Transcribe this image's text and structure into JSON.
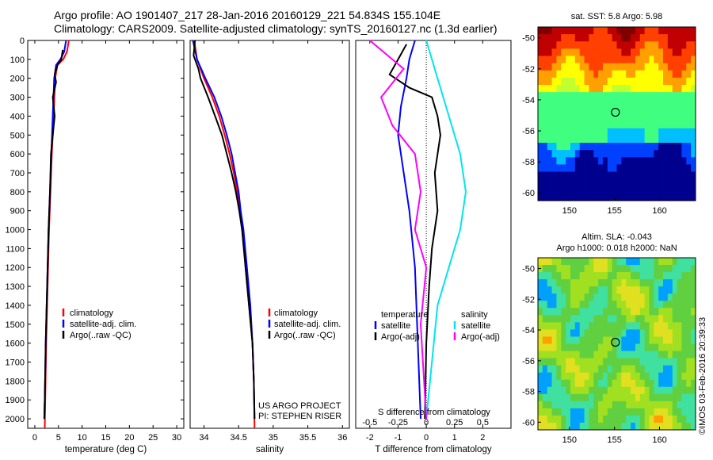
{
  "header": {
    "line1": "Argo profile: AO 1901407_217 28-Jan-2016 20160129_221 54.834S 155.104E",
    "line2": "Climatology: CARS2009. Satellite-adjusted climatology: synTS_20160127.nc (1.3d earlier)"
  },
  "credit": "©IMOS 03-Feb-2016 20:39:33",
  "colors": {
    "climatology": "#ff0000",
    "satellite": "#0000ff",
    "argo": "#000000",
    "sal_satellite": "#00e5ee",
    "sal_argo": "#ff00ff"
  },
  "chart_data": [
    {
      "type": "line",
      "id": "temperature",
      "xlabel": "temperature (deg C)",
      "xlim": [
        -1.5,
        31.5
      ],
      "ylim": [
        2050,
        0
      ],
      "xticks": [
        0,
        5,
        10,
        15,
        20,
        25,
        30
      ],
      "xtick_labels": [
        "0",
        "5",
        "10",
        "15",
        "20",
        "25",
        "30"
      ],
      "yticks": [
        0,
        100,
        200,
        300,
        400,
        500,
        600,
        700,
        800,
        900,
        1000,
        1100,
        1200,
        1300,
        1400,
        1500,
        1600,
        1700,
        1800,
        1900,
        2000
      ],
      "ytick_labels": [
        "0",
        "100",
        "200",
        "300",
        "400",
        "500",
        "600",
        "700",
        "800",
        "900",
        "1000",
        "1100",
        "1200",
        "1300",
        "1400",
        "1500",
        "1600",
        "1700",
        "1800",
        "1900",
        "2000"
      ],
      "legend": [
        "climatology",
        "satellite-adj. clim.",
        "Argo(..raw -QC)"
      ],
      "series": [
        {
          "name": "climatology",
          "color": "#ff0000",
          "points": [
            [
              7.2,
              0
            ],
            [
              6.8,
              60
            ],
            [
              6.0,
              100
            ],
            [
              4.8,
              130
            ],
            [
              4.3,
              200
            ],
            [
              4.0,
              400
            ],
            [
              3.6,
              600
            ],
            [
              3.3,
              800
            ],
            [
              3.0,
              1000
            ],
            [
              2.7,
              1300
            ],
            [
              2.4,
              1600
            ],
            [
              2.2,
              1900
            ],
            [
              2.1,
              2050
            ]
          ]
        },
        {
          "name": "satellite-adj. clim.",
          "color": "#0000ff",
          "points": [
            [
              6.6,
              0
            ],
            [
              6.2,
              60
            ],
            [
              5.4,
              100
            ],
            [
              4.5,
              130
            ],
            [
              4.1,
              200
            ],
            [
              3.8,
              400
            ],
            [
              3.5,
              600
            ],
            [
              3.2,
              800
            ],
            [
              2.9,
              1000
            ],
            [
              2.6,
              1300
            ],
            [
              2.3,
              1600
            ],
            [
              2.1,
              1900
            ],
            [
              2.0,
              2000
            ]
          ]
        },
        {
          "name": "Argo(..raw -QC)",
          "color": "#000000",
          "points": [
            [
              5.9,
              50
            ],
            [
              5.6,
              100
            ],
            [
              4.8,
              130
            ],
            [
              4.2,
              180
            ],
            [
              4.5,
              220
            ],
            [
              3.8,
              300
            ],
            [
              4.2,
              400
            ],
            [
              3.4,
              600
            ],
            [
              3.2,
              800
            ],
            [
              2.9,
              1000
            ],
            [
              2.6,
              1300
            ],
            [
              2.3,
              1600
            ],
            [
              2.1,
              1900
            ],
            [
              2.0,
              2000
            ]
          ]
        }
      ]
    },
    {
      "type": "line",
      "id": "salinity",
      "xlabel": "salinity",
      "xlim": [
        33.8,
        36.1
      ],
      "ylim": [
        2050,
        0
      ],
      "xticks": [
        34,
        34.5,
        35,
        35.5,
        36
      ],
      "xtick_labels": [
        "34",
        "34.5",
        "35",
        "35.5",
        "36"
      ],
      "legend": [
        "climatology",
        "satellite-adj. clim.",
        "Argo(..raw -QC)"
      ],
      "annotations": [
        "US ARGO PROJECT",
        "PI: STEPHEN RISER"
      ],
      "series": [
        {
          "name": "climatology",
          "color": "#ff0000",
          "points": [
            [
              33.86,
              0
            ],
            [
              33.9,
              100
            ],
            [
              34.0,
              200
            ],
            [
              34.12,
              300
            ],
            [
              34.22,
              400
            ],
            [
              34.3,
              500
            ],
            [
              34.37,
              600
            ],
            [
              34.43,
              700
            ],
            [
              34.48,
              800
            ],
            [
              34.52,
              900
            ],
            [
              34.56,
              1000
            ],
            [
              34.6,
              1200
            ],
            [
              34.65,
              1400
            ],
            [
              34.7,
              1600
            ],
            [
              34.72,
              1800
            ],
            [
              34.73,
              2050
            ]
          ]
        },
        {
          "name": "satellite-adj. clim.",
          "color": "#0000ff",
          "points": [
            [
              33.84,
              0
            ],
            [
              33.9,
              100
            ],
            [
              34.02,
              200
            ],
            [
              34.15,
              300
            ],
            [
              34.25,
              400
            ],
            [
              34.33,
              500
            ],
            [
              34.4,
              600
            ],
            [
              34.45,
              700
            ],
            [
              34.5,
              800
            ],
            [
              34.53,
              900
            ],
            [
              34.57,
              1000
            ],
            [
              34.62,
              1200
            ],
            [
              34.67,
              1400
            ],
            [
              34.7,
              1600
            ],
            [
              34.72,
              1800
            ],
            [
              34.73,
              2000
            ]
          ]
        },
        {
          "name": "Argo(..raw -QC)",
          "color": "#000000",
          "points": [
            [
              33.87,
              0
            ],
            [
              33.85,
              80
            ],
            [
              33.92,
              150
            ],
            [
              33.95,
              200
            ],
            [
              34.06,
              300
            ],
            [
              34.16,
              400
            ],
            [
              34.26,
              500
            ],
            [
              34.33,
              600
            ],
            [
              34.4,
              700
            ],
            [
              34.46,
              800
            ],
            [
              34.51,
              900
            ],
            [
              34.55,
              1000
            ],
            [
              34.6,
              1200
            ],
            [
              34.65,
              1400
            ],
            [
              34.7,
              1600
            ],
            [
              34.72,
              1800
            ],
            [
              34.73,
              2000
            ]
          ]
        }
      ]
    },
    {
      "type": "line",
      "id": "differences",
      "xlabel": "T difference from climatology",
      "xlim": [
        -2.5,
        3.0
      ],
      "ylim": [
        2050,
        0
      ],
      "xticks": [
        -2,
        -1,
        0,
        1,
        2
      ],
      "xtick_labels": [
        "-2",
        "-1",
        "0",
        "1",
        "2"
      ],
      "secondary_xlabel": "S difference from climatology",
      "secondary_xticks": [
        -0.5,
        -0.25,
        0,
        0.25,
        0.5
      ],
      "secondary_xtick_labels": [
        "-0.5",
        "-0.25",
        "0",
        "0.25",
        "0.5"
      ],
      "legend_temperature_title": "temperature",
      "legend_temperature": [
        "satellite",
        "Argo(-adj)"
      ],
      "legend_salinity_title": "salinity",
      "legend_salinity": [
        "satellite",
        "Argo(-adj)"
      ],
      "series": [
        {
          "name": "satellite",
          "group": "temperature",
          "color": "#0000ff",
          "points": [
            [
              -0.4,
              0
            ],
            [
              -0.6,
              100
            ],
            [
              -0.7,
              200
            ],
            [
              -0.9,
              350
            ],
            [
              -1.0,
              500
            ],
            [
              -0.8,
              700
            ],
            [
              -0.6,
              900
            ],
            [
              -0.4,
              1200
            ],
            [
              -0.3,
              1600
            ],
            [
              -0.2,
              2000
            ]
          ]
        },
        {
          "name": "Argo(-adj)",
          "group": "temperature",
          "color": "#000000",
          "points": [
            [
              -0.7,
              20
            ],
            [
              -1.0,
              100
            ],
            [
              -1.3,
              180
            ],
            [
              -0.6,
              250
            ],
            [
              0.2,
              300
            ],
            [
              0.4,
              400
            ],
            [
              0.5,
              500
            ],
            [
              0.3,
              700
            ],
            [
              0.4,
              900
            ],
            [
              0.2,
              1100
            ],
            [
              0.1,
              1300
            ],
            [
              0.0,
              1600
            ],
            [
              -0.05,
              2000
            ]
          ]
        },
        {
          "name": "satellite",
          "group": "salinity",
          "color": "#00e5ee",
          "points": [
            [
              0.0,
              0
            ],
            [
              0.1,
              200
            ],
            [
              0.2,
              400
            ],
            [
              0.3,
              600
            ],
            [
              0.35,
              800
            ],
            [
              0.3,
              1000
            ],
            [
              0.2,
              1200
            ],
            [
              0.1,
              1400
            ],
            [
              0.05,
              1700
            ],
            [
              0.0,
              2000
            ]
          ]
        },
        {
          "name": "Argo(-adj)",
          "group": "salinity",
          "color": "#ff00ff",
          "points": [
            [
              -0.5,
              0
            ],
            [
              -0.2,
              150
            ],
            [
              -0.4,
              300
            ],
            [
              -0.3,
              450
            ],
            [
              -0.1,
              600
            ],
            [
              -0.05,
              800
            ],
            [
              -0.1,
              1000
            ],
            [
              0.0,
              1200
            ],
            [
              -0.05,
              1500
            ],
            [
              0.0,
              2000
            ]
          ]
        }
      ]
    },
    {
      "type": "heatmap",
      "id": "sst_map",
      "title": "sat. SST: 5.8 Argo: 5.98",
      "xlim": [
        146.5,
        164
      ],
      "ylim": [
        -60.5,
        -49.3
      ],
      "xticks": [
        150,
        155,
        160
      ],
      "xtick_labels": [
        "150",
        "155",
        "160"
      ],
      "yticks": [
        -50,
        -52,
        -54,
        -56,
        -58,
        -60
      ],
      "ytick_labels": [
        "-50",
        "-52",
        "-54",
        "-56",
        "-58",
        "-60"
      ],
      "marker": [
        155.1,
        -54.8
      ],
      "value_range": [
        2.0,
        12.0
      ],
      "colors": [
        "#00008f",
        "#0040ff",
        "#00bfff",
        "#40ff80",
        "#c0ff30",
        "#ffff00",
        "#ffa000",
        "#ff4000",
        "#c00000",
        "#800000"
      ]
    },
    {
      "type": "heatmap",
      "id": "sla_map",
      "title": "Altim. SLA: -0.043",
      "subtitle": "Argo h1000: 0.018 h2000: NaN",
      "xlim": [
        146.5,
        164
      ],
      "ylim": [
        -60.5,
        -49.3
      ],
      "xticks": [
        150,
        155,
        160
      ],
      "xtick_labels": [
        "150",
        "155",
        "160"
      ],
      "yticks": [
        -50,
        -52,
        -54,
        -56,
        -58,
        -60
      ],
      "ytick_labels": [
        "-50",
        "-52",
        "-54",
        "-56",
        "-58",
        "-60"
      ],
      "marker": [
        155.1,
        -54.8
      ],
      "value_range": [
        -0.5,
        0.5
      ],
      "colors": [
        "#0030ff",
        "#00a0ff",
        "#40e0a0",
        "#60d040",
        "#a0e020",
        "#e0e020",
        "#ffa000",
        "#ff4000"
      ]
    }
  ]
}
